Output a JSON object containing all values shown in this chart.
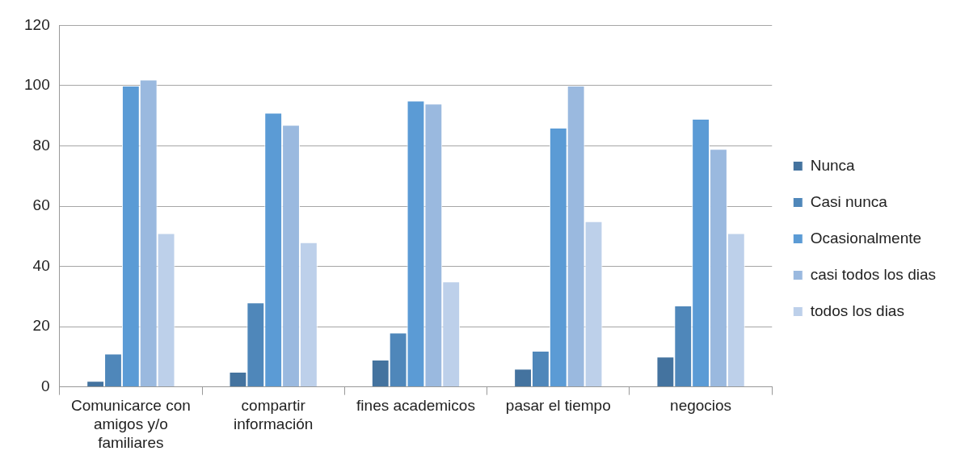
{
  "chart_data": {
    "type": "bar",
    "categories": [
      "Comunicarce con amigos y/o familiares",
      "compartir información",
      "fines academicos",
      "pasar el tiempo",
      "negocios"
    ],
    "series": [
      {
        "name": "Nunca",
        "color": "#44739f",
        "values": [
          2,
          5,
          9,
          6,
          10
        ]
      },
      {
        "name": "Casi nunca",
        "color": "#4f87ba",
        "values": [
          11,
          28,
          18,
          12,
          27
        ]
      },
      {
        "name": "Ocasionalmente",
        "color": "#5b9bd5",
        "values": [
          100,
          91,
          95,
          86,
          89
        ]
      },
      {
        "name": "casi todos los dias",
        "color": "#9ab9df",
        "values": [
          102,
          87,
          94,
          100,
          79
        ]
      },
      {
        "name": "todos los dias",
        "color": "#bdd0ea",
        "values": [
          51,
          48,
          35,
          55,
          51
        ]
      }
    ],
    "ylim": [
      0,
      120
    ],
    "yticks": [
      0,
      20,
      40,
      60,
      80,
      100,
      120
    ],
    "grid": "y",
    "legend": "right"
  }
}
